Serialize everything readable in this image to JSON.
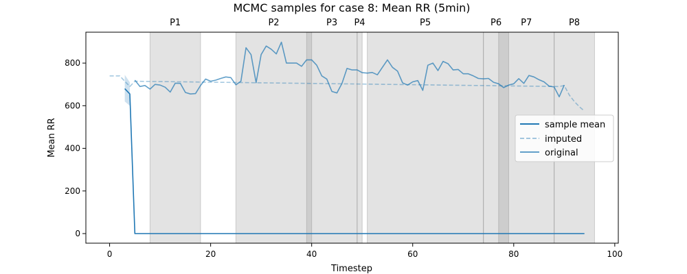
{
  "chart_data": {
    "type": "line",
    "title": "MCMC samples for case 8: Mean RR (5min)",
    "xlabel": "Timestep",
    "ylabel": "Mean RR",
    "xlim": [
      -4.7,
      100.7
    ],
    "ylim": [
      -45,
      945
    ],
    "xticks": [
      0,
      20,
      40,
      60,
      80,
      100
    ],
    "yticks": [
      0,
      200,
      400,
      600,
      800
    ],
    "grid": false,
    "legend_position": "center-right",
    "colors": {
      "line": "#1f77b4",
      "period_fill": "#808080",
      "band": "#1f77b4"
    },
    "periods": [
      {
        "label": "P1",
        "start": 8,
        "end": 18
      },
      {
        "label": "P2",
        "start": 25,
        "end": 40
      },
      {
        "label": "P3",
        "start": 39,
        "end": 49
      },
      {
        "label": "P4",
        "start": 49,
        "end": 50
      },
      {
        "label": "P5",
        "start": 51,
        "end": 74
      },
      {
        "label": "P6",
        "start": 74,
        "end": 79
      },
      {
        "label": "P7",
        "start": 77,
        "end": 88
      },
      {
        "label": "P8",
        "start": 88,
        "end": 96
      }
    ],
    "series": [
      {
        "name": "sample mean",
        "style": "solid",
        "points": [
          [
            3,
            680
          ],
          [
            4,
            655
          ],
          [
            5,
            0
          ],
          [
            94,
            0
          ]
        ]
      },
      {
        "name": "imputed",
        "style": "dashed",
        "points": [
          [
            0,
            740
          ],
          [
            1,
            740
          ],
          [
            2,
            740
          ],
          [
            3,
            715
          ],
          [
            4,
            690
          ],
          [
            5,
            715
          ],
          [
            89,
            690
          ],
          [
            90,
            695
          ],
          [
            91,
            650
          ],
          [
            92,
            620
          ],
          [
            93,
            595
          ],
          [
            94,
            575
          ]
        ]
      },
      {
        "name": "original",
        "style": "solid",
        "points": [
          [
            5,
            720
          ],
          [
            6,
            690
          ],
          [
            7,
            695
          ],
          [
            8,
            678
          ],
          [
            9,
            700
          ],
          [
            10,
            697
          ],
          [
            11,
            687
          ],
          [
            12,
            664
          ],
          [
            13,
            706
          ],
          [
            14,
            705
          ],
          [
            15,
            662
          ],
          [
            16,
            655
          ],
          [
            17,
            657
          ],
          [
            18,
            695
          ],
          [
            19,
            725
          ],
          [
            20,
            715
          ],
          [
            21,
            720
          ],
          [
            22,
            728
          ],
          [
            23,
            735
          ],
          [
            24,
            732
          ],
          [
            25,
            698
          ],
          [
            26,
            715
          ],
          [
            27,
            872
          ],
          [
            28,
            840
          ],
          [
            29,
            708
          ],
          [
            30,
            840
          ],
          [
            31,
            880
          ],
          [
            32,
            865
          ],
          [
            33,
            843
          ],
          [
            34,
            898
          ],
          [
            35,
            800
          ],
          [
            36,
            800
          ],
          [
            37,
            800
          ],
          [
            38,
            785
          ],
          [
            39,
            815
          ],
          [
            40,
            815
          ],
          [
            41,
            790
          ],
          [
            42,
            740
          ],
          [
            43,
            725
          ],
          [
            44,
            667
          ],
          [
            45,
            660
          ],
          [
            46,
            705
          ],
          [
            47,
            775
          ],
          [
            48,
            768
          ],
          [
            49,
            768
          ],
          [
            50,
            755
          ],
          [
            51,
            753
          ],
          [
            52,
            756
          ],
          [
            53,
            745
          ],
          [
            54,
            780
          ],
          [
            55,
            815
          ],
          [
            56,
            780
          ],
          [
            57,
            762
          ],
          [
            58,
            707
          ],
          [
            59,
            697
          ],
          [
            60,
            712
          ],
          [
            61,
            718
          ],
          [
            62,
            672
          ],
          [
            63,
            790
          ],
          [
            64,
            800
          ],
          [
            65,
            765
          ],
          [
            66,
            808
          ],
          [
            67,
            797
          ],
          [
            68,
            768
          ],
          [
            69,
            770
          ],
          [
            70,
            750
          ],
          [
            71,
            750
          ],
          [
            72,
            740
          ],
          [
            73,
            728
          ],
          [
            74,
            726
          ],
          [
            75,
            728
          ],
          [
            76,
            710
          ],
          [
            77,
            703
          ],
          [
            78,
            685
          ],
          [
            79,
            697
          ],
          [
            80,
            703
          ],
          [
            81,
            727
          ],
          [
            82,
            705
          ],
          [
            83,
            742
          ],
          [
            84,
            735
          ],
          [
            85,
            722
          ],
          [
            86,
            712
          ],
          [
            87,
            692
          ],
          [
            88,
            688
          ],
          [
            89,
            642
          ],
          [
            90,
            697
          ]
        ]
      }
    ],
    "uncertainty_band": {
      "x": [
        3,
        4
      ],
      "upper": [
        745,
        710
      ],
      "lower": [
        620,
        600
      ]
    }
  }
}
